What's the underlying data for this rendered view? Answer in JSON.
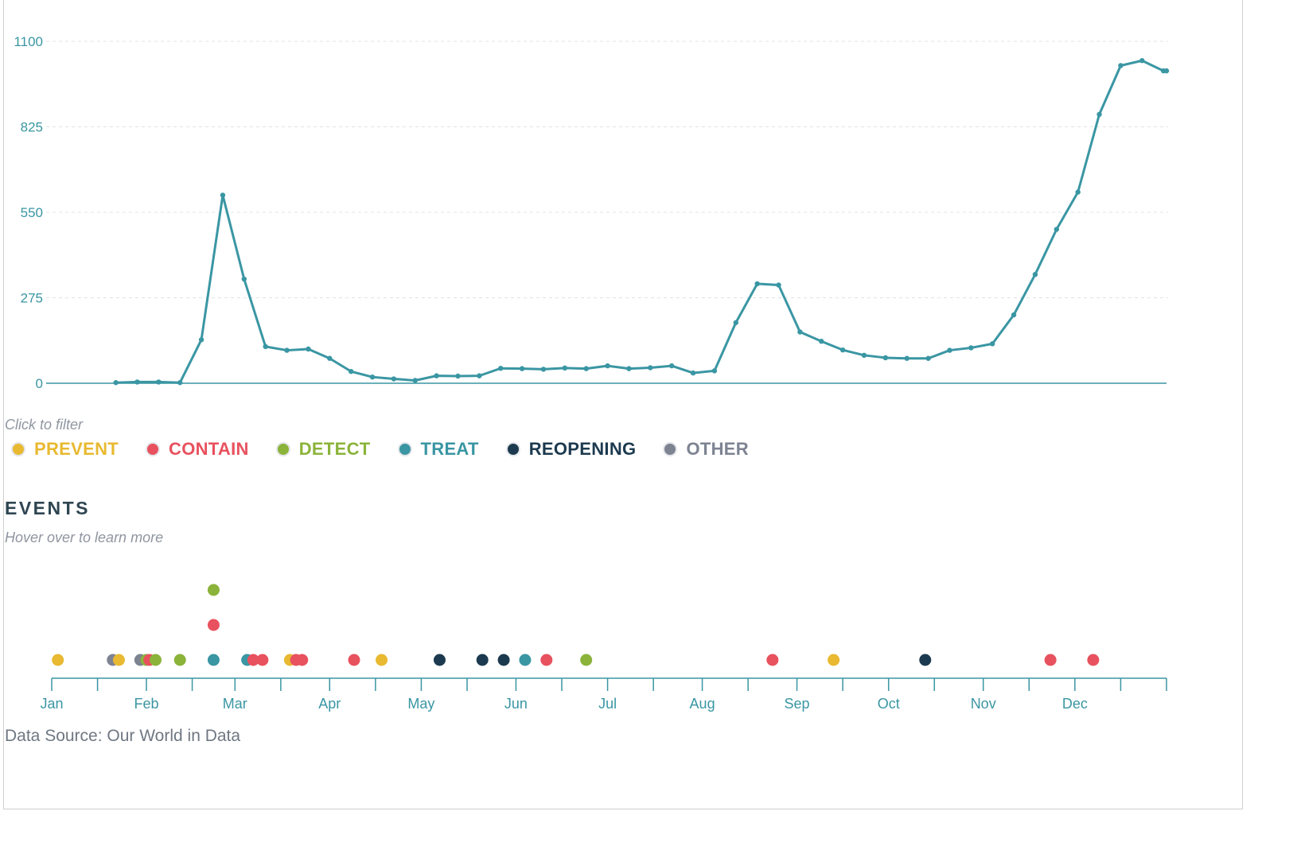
{
  "colors": {
    "PREVENT": "#e8b931",
    "CONTAIN": "#e8515e",
    "DETECT": "#8bb33a",
    "TREAT": "#3a96a3",
    "REOPENING": "#1c3a4f",
    "OTHER": "#7d8391"
  },
  "filter_hint": "Click to filter",
  "legend": [
    {
      "key": "PREVENT",
      "label": "PREVENT"
    },
    {
      "key": "CONTAIN",
      "label": "CONTAIN"
    },
    {
      "key": "DETECT",
      "label": "DETECT"
    },
    {
      "key": "TREAT",
      "label": "TREAT"
    },
    {
      "key": "REOPENING",
      "label": "REOPENING"
    },
    {
      "key": "OTHER",
      "label": "OTHER"
    }
  ],
  "events_title": "EVENTS",
  "events_hint": "Hover over to learn more",
  "source": "Data Source: Our World in Data",
  "chart_data": [
    {
      "type": "line",
      "title": "",
      "xlabel": "",
      "ylabel": "",
      "ylim": [
        0,
        1100
      ],
      "yticks": [
        0,
        275,
        550,
        825,
        1100
      ],
      "grid": "horizontal dashed",
      "color": "#3a96a3",
      "x": [
        "2020-01-22",
        "2020-01-29",
        "2020-02-05",
        "2020-02-12",
        "2020-02-19",
        "2020-02-26",
        "2020-03-04",
        "2020-03-11",
        "2020-03-18",
        "2020-03-25",
        "2020-04-01",
        "2020-04-08",
        "2020-04-15",
        "2020-04-22",
        "2020-04-29",
        "2020-05-06",
        "2020-05-13",
        "2020-05-20",
        "2020-05-27",
        "2020-06-03",
        "2020-06-10",
        "2020-06-17",
        "2020-06-24",
        "2020-07-01",
        "2020-07-08",
        "2020-07-15",
        "2020-07-22",
        "2020-07-29",
        "2020-08-05",
        "2020-08-12",
        "2020-08-19",
        "2020-08-26",
        "2020-09-02",
        "2020-09-09",
        "2020-09-16",
        "2020-09-23",
        "2020-09-30",
        "2020-10-07",
        "2020-10-14",
        "2020-10-21",
        "2020-10-28",
        "2020-11-04",
        "2020-11-11",
        "2020-11-18",
        "2020-11-25",
        "2020-12-02",
        "2020-12-09",
        "2020-12-16",
        "2020-12-23",
        "2020-12-30",
        "2020-12-31"
      ],
      "values": [
        2,
        4,
        4,
        2,
        140,
        605,
        335,
        118,
        106,
        110,
        80,
        38,
        20,
        14,
        9,
        24,
        23,
        24,
        48,
        47,
        45,
        49,
        47,
        56,
        47,
        50,
        56,
        33,
        40,
        195,
        320,
        316,
        165,
        135,
        107,
        90,
        82,
        80,
        80,
        106,
        114,
        127,
        220,
        350,
        495,
        615,
        865,
        1022,
        1038,
        1005,
        1005
      ]
    },
    {
      "type": "scatter",
      "title": "EVENTS",
      "xticks": [
        "Jan",
        "Feb",
        "Mar",
        "Apr",
        "May",
        "Jun",
        "Jul",
        "Aug",
        "Sep",
        "Oct",
        "Nov",
        "Dec"
      ],
      "events": [
        {
          "date": "2020-01-03",
          "category": "PREVENT"
        },
        {
          "date": "2020-01-21",
          "category": "OTHER"
        },
        {
          "date": "2020-01-23",
          "category": "PREVENT"
        },
        {
          "date": "2020-01-30",
          "category": "OTHER"
        },
        {
          "date": "2020-02-01",
          "category": "DETECT"
        },
        {
          "date": "2020-02-02",
          "category": "CONTAIN"
        },
        {
          "date": "2020-02-04",
          "category": "DETECT"
        },
        {
          "date": "2020-02-12",
          "category": "DETECT"
        },
        {
          "date": "2020-02-23",
          "category": "TREAT"
        },
        {
          "date": "2020-02-23",
          "category": "CONTAIN"
        },
        {
          "date": "2020-02-23",
          "category": "DETECT"
        },
        {
          "date": "2020-03-05",
          "category": "TREAT"
        },
        {
          "date": "2020-03-07",
          "category": "CONTAIN"
        },
        {
          "date": "2020-03-10",
          "category": "CONTAIN"
        },
        {
          "date": "2020-03-19",
          "category": "PREVENT"
        },
        {
          "date": "2020-03-21",
          "category": "CONTAIN"
        },
        {
          "date": "2020-03-23",
          "category": "CONTAIN"
        },
        {
          "date": "2020-04-09",
          "category": "CONTAIN"
        },
        {
          "date": "2020-04-18",
          "category": "PREVENT"
        },
        {
          "date": "2020-05-07",
          "category": "REOPENING"
        },
        {
          "date": "2020-05-21",
          "category": "REOPENING"
        },
        {
          "date": "2020-05-28",
          "category": "REOPENING"
        },
        {
          "date": "2020-06-04",
          "category": "TREAT"
        },
        {
          "date": "2020-06-11",
          "category": "CONTAIN"
        },
        {
          "date": "2020-06-24",
          "category": "DETECT"
        },
        {
          "date": "2020-08-24",
          "category": "CONTAIN"
        },
        {
          "date": "2020-09-13",
          "category": "PREVENT"
        },
        {
          "date": "2020-10-13",
          "category": "REOPENING"
        },
        {
          "date": "2020-11-23",
          "category": "CONTAIN"
        },
        {
          "date": "2020-12-07",
          "category": "CONTAIN"
        }
      ]
    }
  ]
}
